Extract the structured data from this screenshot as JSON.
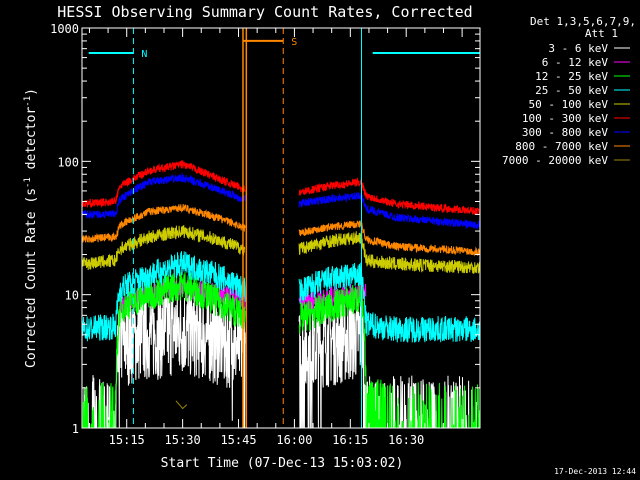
{
  "chart_data": {
    "type": "line",
    "title": "HESSI Observing Summary Count Rates, Corrected",
    "xlabel": "Start Time (07-Dec-13 15:03:02)",
    "ylabel_parts": [
      "Corrected Count Rate (s",
      "-1",
      " detector",
      "-1",
      ")"
    ],
    "footer": "17-Dec-2013 12:44",
    "legend_header": [
      "Det 1,3,5,6,7,9,",
      "Att 1"
    ],
    "y_scale": "log",
    "ylim": [
      1,
      1000
    ],
    "xlim_minutes": [
      15.05,
      16.83
    ],
    "y_ticks": [
      {
        "v": 1,
        "label": "1"
      },
      {
        "v": 10,
        "label": "10"
      },
      {
        "v": 100,
        "label": "100"
      },
      {
        "v": 1000,
        "label": "1000"
      }
    ],
    "x_ticks": [
      {
        "m": 15.25,
        "label": "15:15"
      },
      {
        "m": 15.5,
        "label": "15:30"
      },
      {
        "m": 15.75,
        "label": "15:45"
      },
      {
        "m": 16.0,
        "label": "16:00"
      },
      {
        "m": 16.25,
        "label": "16:15"
      },
      {
        "m": 16.5,
        "label": "16:30"
      }
    ],
    "gap": [
      15.78,
      16.02
    ],
    "series": [
      {
        "name": "3 - 6 keV",
        "color": "#ffffff",
        "level": 5.0,
        "noise": 0.35,
        "x": [
          15.05,
          15.2,
          15.22,
          15.35,
          15.5,
          15.77,
          16.02,
          16.15,
          16.3,
          16.32,
          16.45,
          16.83
        ],
        "y": [
          1,
          1,
          4.5,
          5,
          5.5,
          4,
          3.5,
          4.5,
          5,
          1,
          1,
          1
        ]
      },
      {
        "name": "6 - 12 keV",
        "color": "#ff00ff",
        "level": 10,
        "noise": 0.08,
        "x": [
          15.22,
          15.3,
          15.5,
          15.6,
          15.77,
          16.02,
          16.15,
          16.3,
          16.32
        ],
        "y": [
          8,
          10,
          11.5,
          10.5,
          9,
          8.5,
          9.5,
          10.5,
          10.5
        ]
      },
      {
        "name": "12 - 25 keV",
        "color": "#00ff00",
        "level": 9,
        "noise": 0.12,
        "x": [
          15.05,
          15.2,
          15.22,
          15.35,
          15.5,
          15.65,
          15.77,
          16.02,
          16.15,
          16.3,
          16.32,
          16.45,
          16.83
        ],
        "y": [
          1.5,
          1.5,
          8,
          10,
          12,
          9,
          7,
          6.5,
          8,
          9.5,
          2,
          1.5,
          1.5
        ]
      },
      {
        "name": "25 - 50 keV",
        "color": "#00ffff",
        "level": 14,
        "noise": 0.1,
        "x": [
          15.05,
          15.2,
          15.22,
          15.35,
          15.5,
          15.65,
          15.77,
          16.02,
          16.15,
          16.3,
          16.32,
          16.45,
          16.83
        ],
        "y": [
          5.5,
          5.8,
          11,
          14,
          17,
          14,
          11,
          10.5,
          13,
          14,
          6,
          5.5,
          5.5
        ]
      },
      {
        "name": "50 - 100 keV",
        "color": "#cccc00",
        "level": 20,
        "noise": 0.05,
        "x": [
          15.05,
          15.2,
          15.22,
          15.35,
          15.5,
          15.65,
          15.77,
          16.02,
          16.15,
          16.3,
          16.32,
          16.45,
          16.83
        ],
        "y": [
          17,
          18,
          22,
          27,
          30,
          26,
          22,
          22,
          25,
          27,
          18,
          17,
          16
        ]
      },
      {
        "name": "100 - 300 keV",
        "color": "#ff0000",
        "level": 60,
        "noise": 0.03,
        "x": [
          15.05,
          15.2,
          15.22,
          15.35,
          15.5,
          15.65,
          15.77,
          16.02,
          16.15,
          16.3,
          16.32,
          16.45,
          16.83
        ],
        "y": [
          48,
          50,
          65,
          85,
          95,
          75,
          62,
          58,
          65,
          70,
          55,
          48,
          42
        ]
      },
      {
        "name": "300 - 800 keV",
        "color": "#0000ff",
        "level": 45,
        "noise": 0.03,
        "x": [
          15.05,
          15.2,
          15.22,
          15.35,
          15.5,
          15.65,
          15.77,
          16.02,
          16.15,
          16.3,
          16.32,
          16.45,
          16.83
        ],
        "y": [
          40,
          40,
          52,
          70,
          75,
          62,
          52,
          48,
          52,
          55,
          44,
          38,
          33
        ]
      },
      {
        "name": "800 - 7000 keV",
        "color": "#ff8800",
        "level": 30,
        "noise": 0.03,
        "x": [
          15.05,
          15.2,
          15.22,
          15.35,
          15.5,
          15.65,
          15.77,
          16.02,
          16.15,
          16.3,
          16.32,
          16.45,
          16.83
        ],
        "y": [
          26,
          27,
          33,
          42,
          45,
          38,
          32,
          29,
          32,
          34,
          26,
          23,
          21
        ]
      },
      {
        "name": "7000 - 20000 keV",
        "color": "#998800",
        "level": 1,
        "noise": 0,
        "x": [
          15.47,
          15.5,
          15.52
        ],
        "y": [
          1.6,
          1.4,
          1.5
        ]
      }
    ],
    "annotations": [
      {
        "label": "N",
        "color": "#00ffff",
        "start": 15.08,
        "end": 15.28,
        "y": 650,
        "dash_at": [
          15.28,
          16.83
        ]
      },
      {
        "label": "S",
        "color": "#ff8800",
        "start": 15.77,
        "end": 15.95,
        "y": 800,
        "dash_at": [
          15.95
        ]
      },
      {
        "label": "",
        "color": "#00ffff",
        "start": 16.35,
        "end": 16.83,
        "y": 650,
        "solid_at": [
          16.3
        ]
      }
    ]
  }
}
